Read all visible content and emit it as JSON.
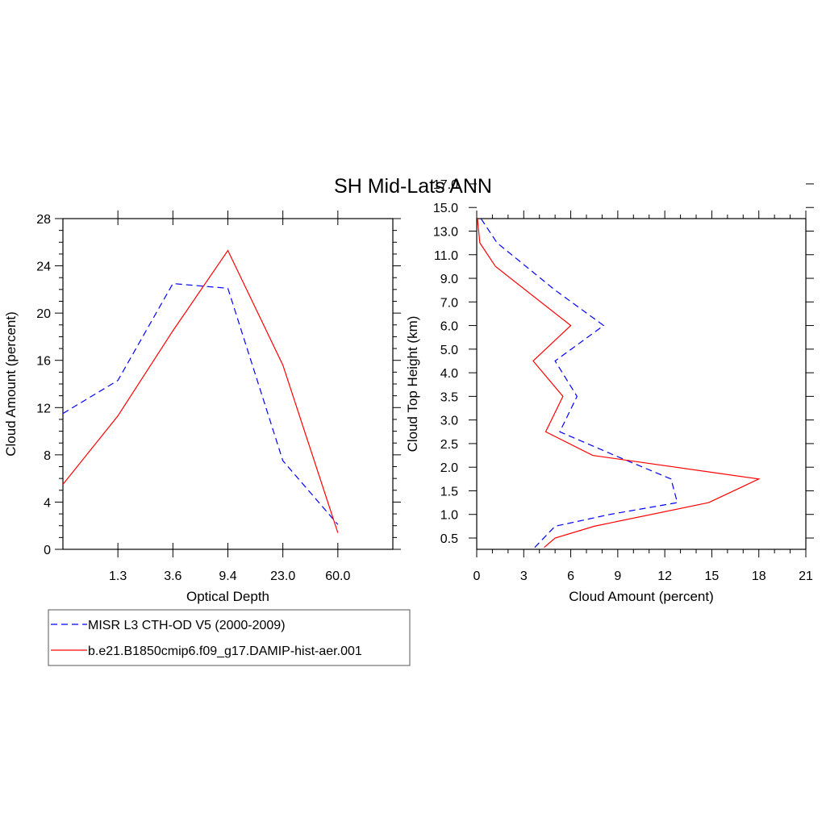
{
  "figure_title": "SH Mid-Lats ANN",
  "colors": {
    "obs": "#0000ff",
    "model": "#ff0000"
  },
  "legend": [
    {
      "label": "MISR L3 CTH-OD V5 (2000-2009)",
      "color": "#0000ff",
      "dash": true
    },
    {
      "label": "b.e21.B1850cmip6.f09_g17.DAMIP-hist-aer.001",
      "color": "#ff0000",
      "dash": false
    }
  ],
  "chart_data": [
    {
      "type": "line",
      "xlabel": "Optical Depth",
      "ylabel": "Cloud Amount (percent)",
      "x_tick_labels": [
        "1.3",
        "3.6",
        "9.4",
        "23.0",
        "60.0"
      ],
      "x_bins": [
        1,
        2,
        3,
        4,
        5,
        6,
        7
      ],
      "xlim": [
        1,
        7
      ],
      "ylim": [
        0,
        28
      ],
      "y_ticks": [
        0,
        4,
        8,
        12,
        16,
        20,
        24,
        28
      ],
      "y_minor_step": 1,
      "series": [
        {
          "name": "MISR L3 CTH-OD V5 (2000-2009)",
          "color": "#0000ff",
          "dash": true,
          "values": [
            11.5,
            14.3,
            22.5,
            22.1,
            7.5,
            2.1
          ]
        },
        {
          "name": "b.e21.B1850cmip6.f09_g17.DAMIP-hist-aer.001",
          "color": "#ff0000",
          "dash": false,
          "values": [
            5.5,
            11.3,
            18.5,
            25.3,
            15.6,
            1.4
          ]
        }
      ]
    },
    {
      "type": "line",
      "xlabel": "Cloud Amount (percent)",
      "ylabel": "Cloud Top Height (km)",
      "y_tick_labels": [
        "0.5",
        "1.0",
        "1.5",
        "2.0",
        "2.5",
        "3.0",
        "3.5",
        "4.0",
        "5.0",
        "6.0",
        "7.0",
        "9.0",
        "11.0",
        "13.0",
        "15.0",
        "17.0"
      ],
      "ylim": [
        0.3,
        18.1
      ],
      "xlim": [
        0,
        21
      ],
      "x_ticks": [
        0,
        3,
        6,
        9,
        12,
        15,
        18,
        21
      ],
      "x_minor_step": 1,
      "series": [
        {
          "name": "MISR L3 CTH-OD V5 (2000-2009)",
          "color": "#0000ff",
          "dash": true,
          "x": [
            3.7,
            5.0,
            8.5,
            12.8,
            12.4,
            8.8,
            5.3,
            6.4,
            5.0,
            8.1,
            5.0,
            1.3,
            0.3,
            0.2,
            0.15
          ],
          "y": [
            0.3,
            0.75,
            1.0,
            1.25,
            1.75,
            2.25,
            2.75,
            3.5,
            4.5,
            6.0,
            8.0,
            12.0,
            14.0,
            16.0,
            18.0
          ]
        },
        {
          "name": "b.e21.B1850cmip6.f09_g17.DAMIP-hist-aer.001",
          "color": "#ff0000",
          "dash": false,
          "x": [
            4.3,
            5.0,
            7.5,
            14.8,
            18.0,
            7.4,
            4.4,
            5.5,
            3.6,
            6.0,
            1.2,
            0.2,
            0.05,
            0.03,
            0.02
          ],
          "y": [
            0.3,
            0.5,
            0.75,
            1.25,
            1.75,
            2.25,
            2.75,
            3.5,
            4.5,
            6.0,
            10.0,
            12.0,
            14.0,
            16.0,
            18.0
          ]
        }
      ]
    }
  ]
}
